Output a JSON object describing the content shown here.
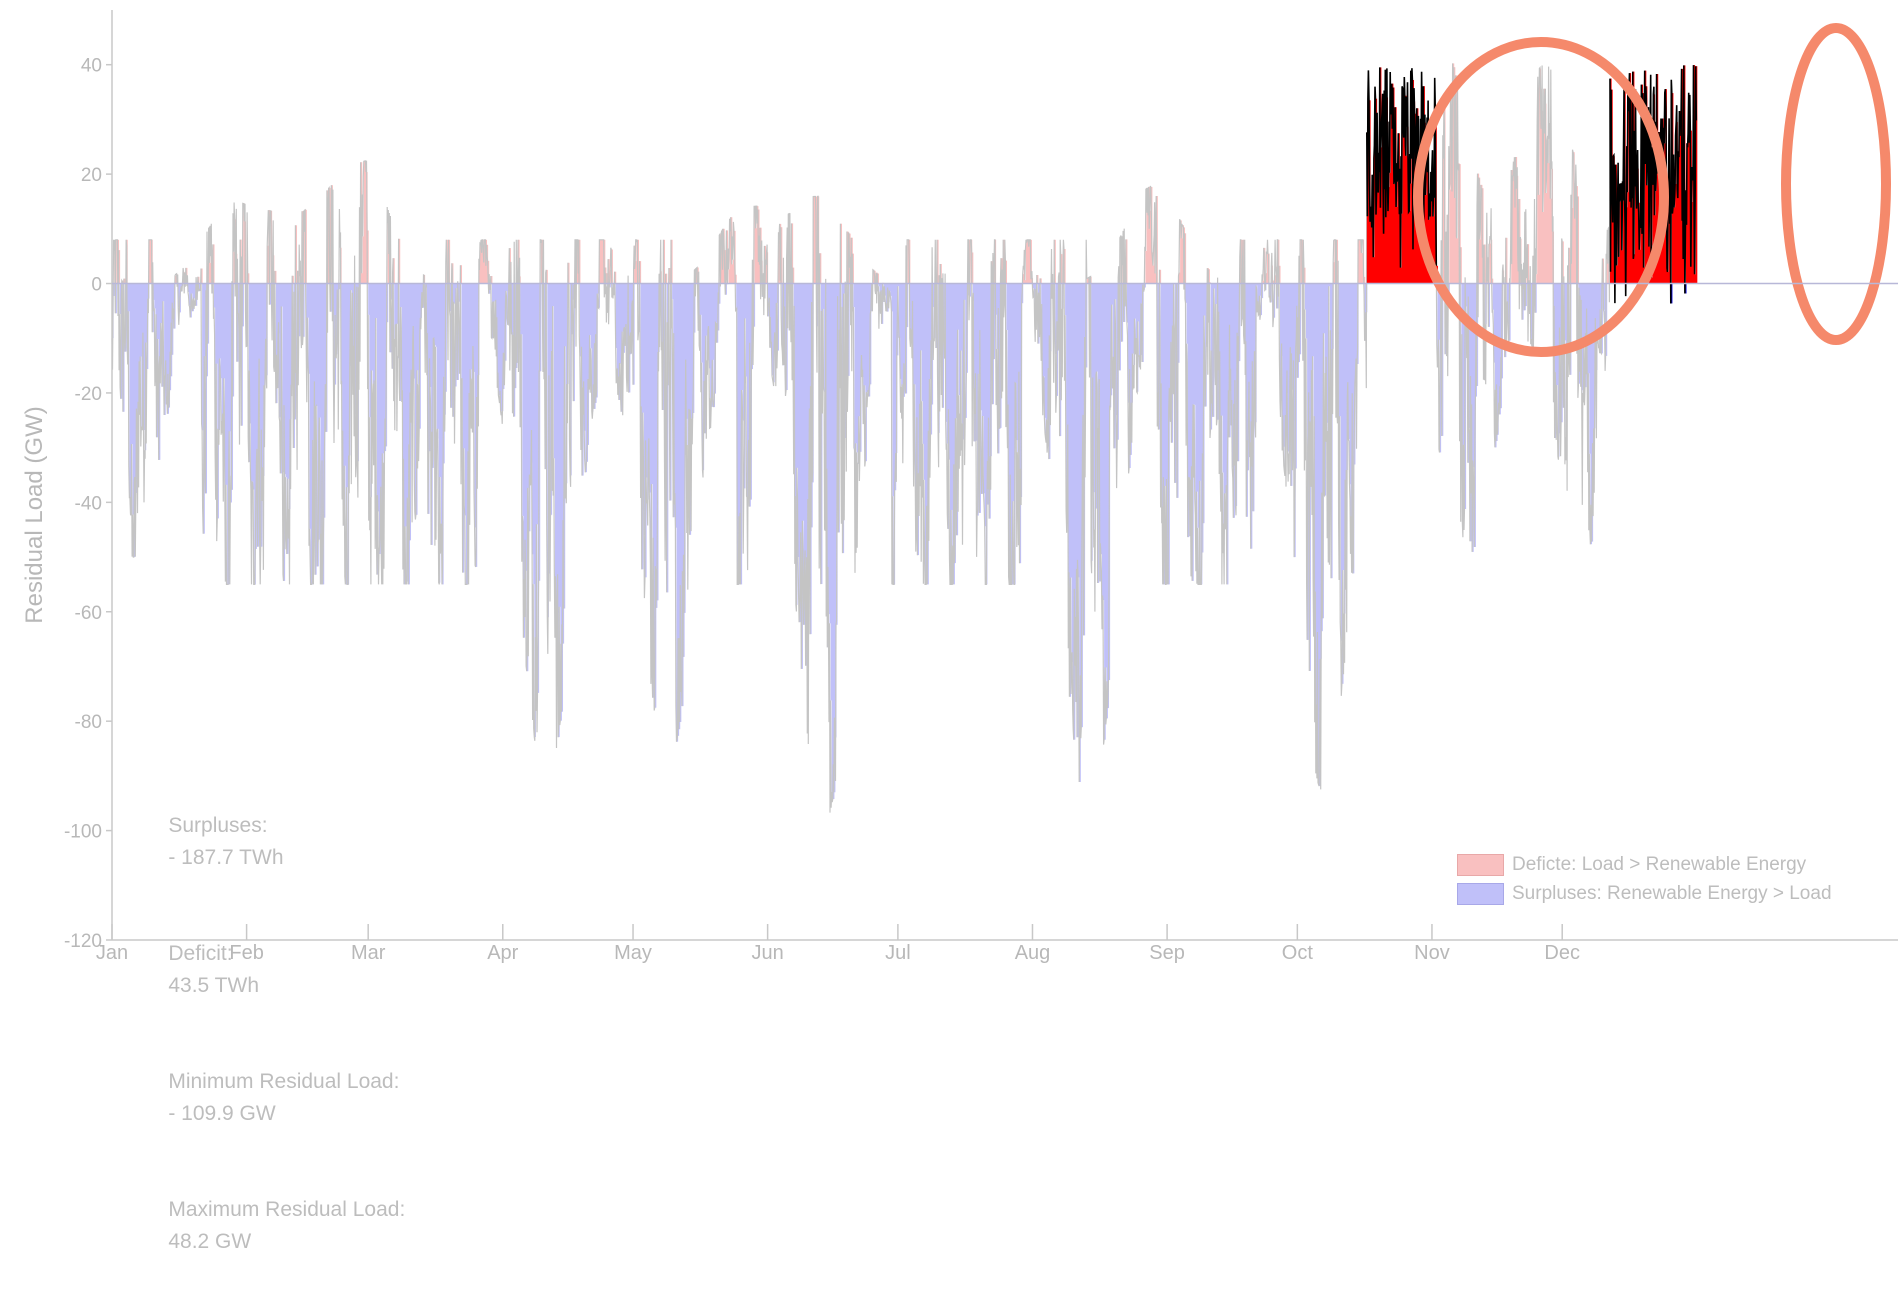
{
  "chart_data": {
    "type": "bar",
    "ylabel": "Residual Load    (GW)",
    "ylim": [
      -120,
      50
    ],
    "yticks": [
      40,
      20,
      0,
      -20,
      -40,
      -60,
      -80,
      -100,
      -120
    ],
    "months": [
      "Jan",
      "Feb",
      "Mar",
      "Apr",
      "May",
      "Jun",
      "Jul",
      "Aug",
      "Sep",
      "Oct",
      "Nov",
      "Dec"
    ],
    "x_unit": "day of year",
    "series": [
      {
        "name": "Deficte: Load > Renewable Energy",
        "color": "#f9c0c0",
        "approx_peaks": [
          {
            "x": 28,
            "y": 15
          },
          {
            "x": 43,
            "y": 12
          },
          {
            "x": 57,
            "y": 23
          },
          {
            "x": 146,
            "y": 14
          },
          {
            "x": 163,
            "y": 16
          },
          {
            "x": 240,
            "y": 18
          },
          {
            "x": 306,
            "y": 44
          },
          {
            "x": 330,
            "y": 40
          },
          {
            "x": 357,
            "y": 48
          }
        ]
      },
      {
        "name": "Surpluses:  Renewable Energy > Load",
        "color": "#c0c0f9",
        "approx_troughs": [
          {
            "x": 5,
            "y": -50
          },
          {
            "x": 100,
            "y": -91
          },
          {
            "x": 128,
            "y": -88
          },
          {
            "x": 164,
            "y": -99
          },
          {
            "x": 225,
            "y": -97
          },
          {
            "x": 279,
            "y": -93
          },
          {
            "x": 312,
            "y": -50
          },
          {
            "x": 339,
            "y": -49
          }
        ]
      }
    ],
    "line_color": "#c4c4c4",
    "highlight": {
      "description": "late-year deficit periods emphasised",
      "deficit_color": "#ff0000",
      "surplus_color": "#0000dd",
      "outline_color": "#000000",
      "circle_color": "#f5896b",
      "ranges": [
        [
          289,
          305
        ],
        [
          345,
          365
        ]
      ]
    }
  },
  "summary": {
    "surpluses_label": "Surpluses:",
    "surpluses_value": "- 187.7 TWh",
    "deficit_label": "Deficit:",
    "deficit_value": "43.5 TWh",
    "min_label": "Minimum Residual Load:",
    "min_value": "- 109.9 GW",
    "max_label": "Maximum Residual Load:",
    "max_value": "48.2 GW"
  },
  "legend": {
    "deficit": "Deficte: Load > Renewable Energy",
    "surplus": "Surpluses:  Renewable Energy > Load"
  }
}
